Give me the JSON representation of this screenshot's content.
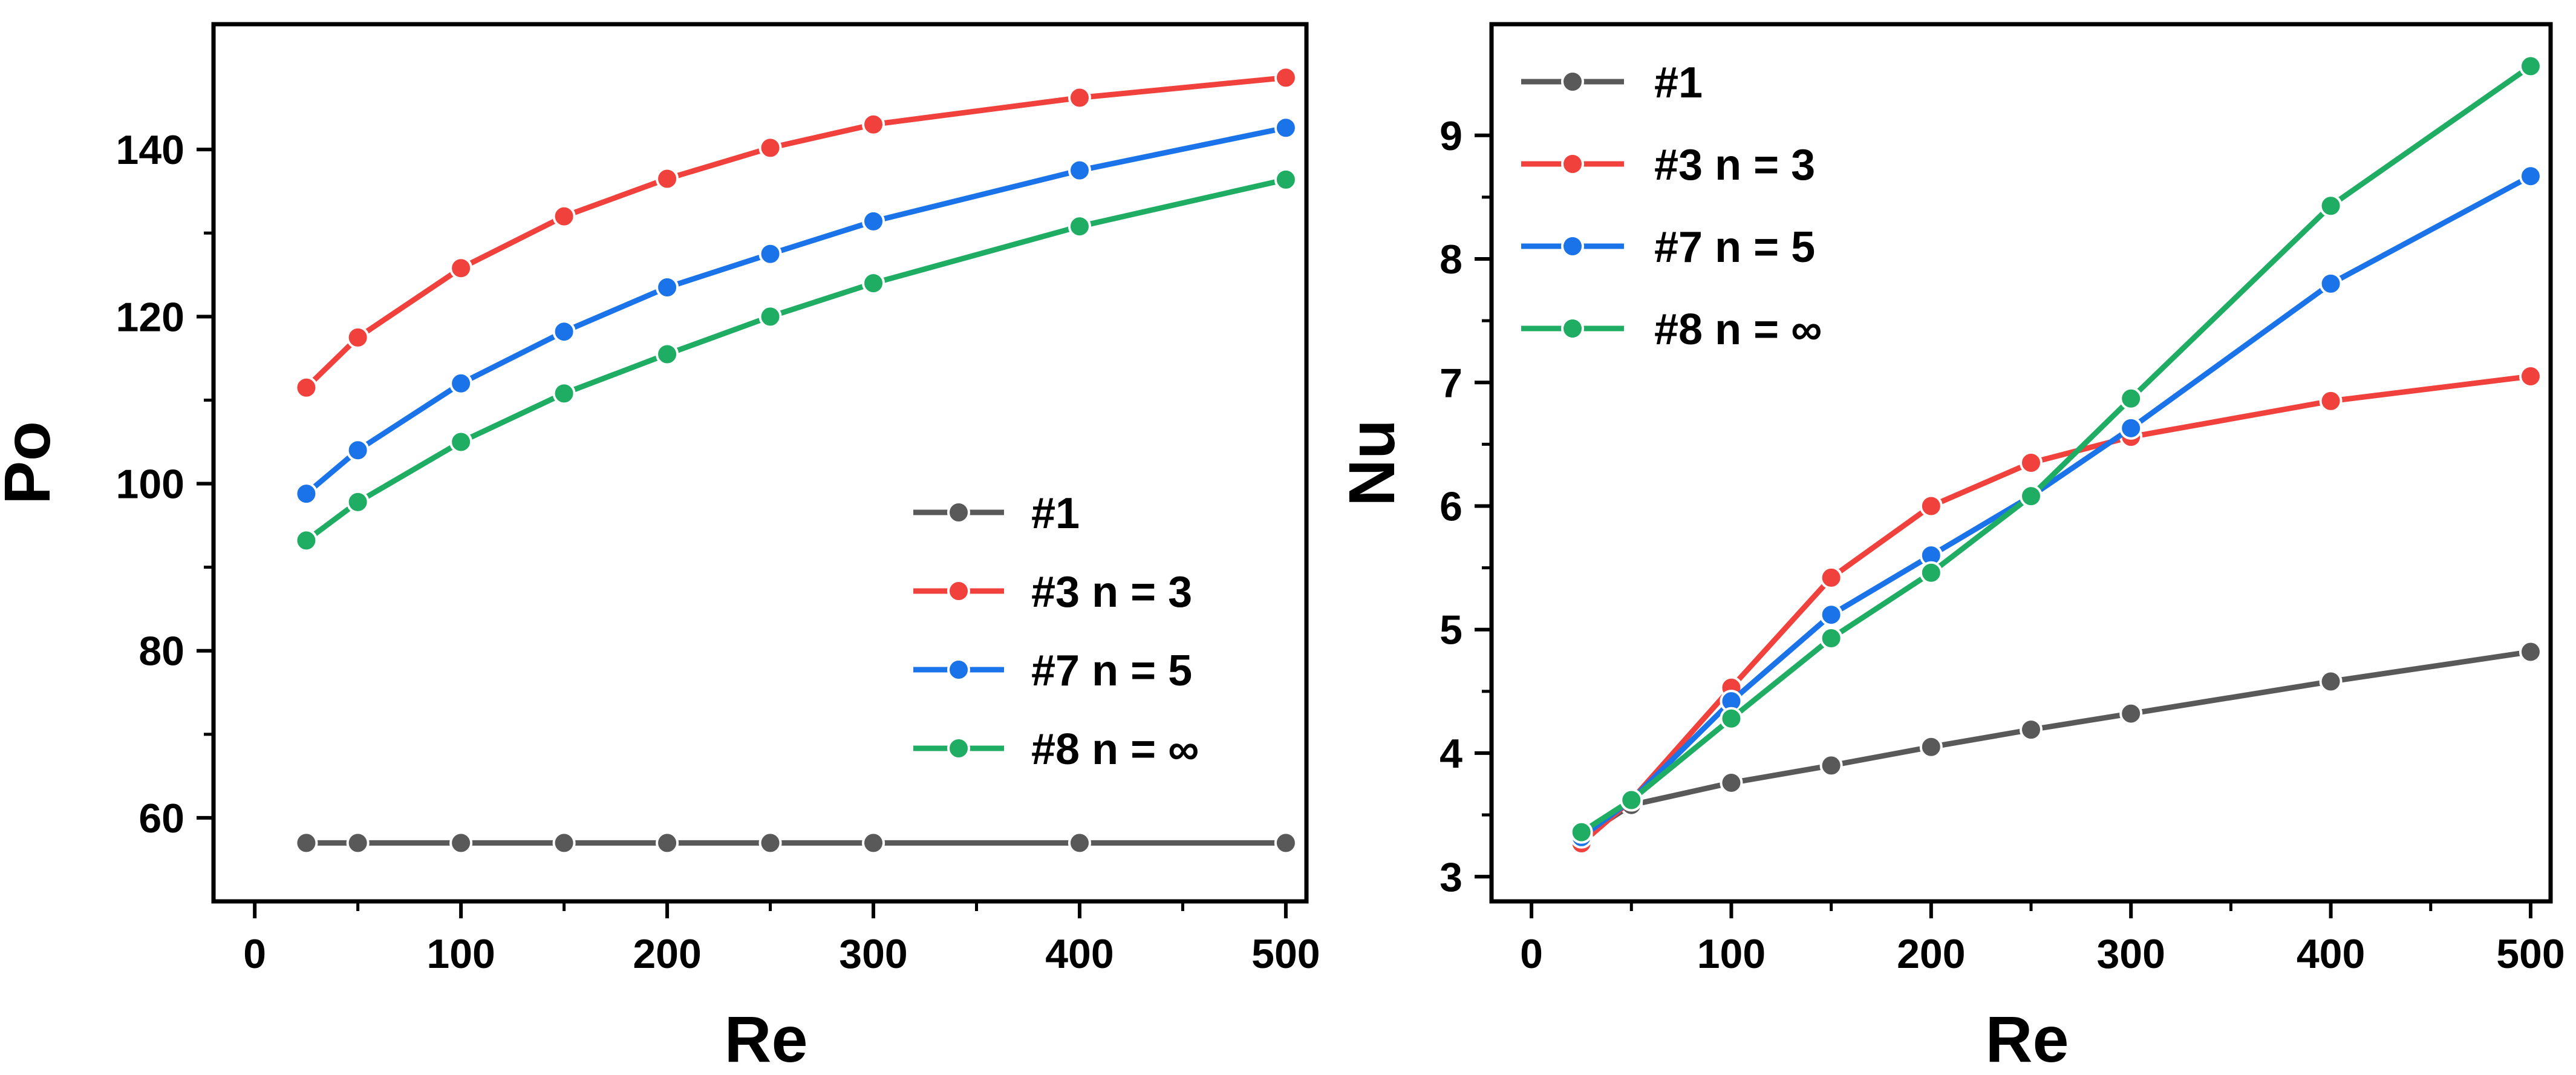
{
  "chart_data": [
    {
      "type": "line",
      "title": "",
      "xlabel": "Re",
      "ylabel": "Po",
      "xlim": [
        -20,
        510
      ],
      "ylim": [
        50,
        155
      ],
      "xticks": [
        0,
        100,
        200,
        300,
        400,
        500
      ],
      "yticks": [
        60,
        80,
        100,
        120,
        140
      ],
      "x": [
        25,
        50,
        100,
        150,
        200,
        250,
        300,
        400,
        500
      ],
      "legend_position": "lower-right",
      "series": [
        {
          "name": "#1",
          "color": "#595959",
          "values": [
            57,
            57,
            57,
            57,
            57,
            57,
            57,
            57,
            57
          ]
        },
        {
          "name": "#3 n = 3",
          "color": "#f0413c",
          "values": [
            111.5,
            117.5,
            125.8,
            132,
            136.5,
            140.2,
            143,
            146.2,
            148.6
          ]
        },
        {
          "name": "#7 n = 5",
          "color": "#1a73e8",
          "values": [
            98.8,
            104,
            112,
            118.2,
            123.5,
            127.5,
            131.4,
            137.5,
            142.6
          ]
        },
        {
          "name": "#8 n = ∞",
          "color": "#1fad63",
          "values": [
            93.2,
            97.8,
            105,
            110.8,
            115.5,
            120,
            124,
            130.8,
            136.4
          ]
        }
      ]
    },
    {
      "type": "line",
      "title": "",
      "xlabel": "Re",
      "ylabel": "Nu",
      "xlim": [
        -20,
        510
      ],
      "ylim": [
        2.8,
        9.9
      ],
      "xticks": [
        0,
        100,
        200,
        300,
        400,
        500
      ],
      "yticks": [
        3,
        4,
        5,
        6,
        7,
        8,
        9
      ],
      "x": [
        25,
        50,
        100,
        150,
        200,
        250,
        300,
        400,
        500
      ],
      "legend_position": "top-left",
      "series": [
        {
          "name": "#1",
          "color": "#595959",
          "values": [
            3.32,
            3.58,
            3.76,
            3.9,
            4.05,
            4.19,
            4.32,
            4.58,
            4.82
          ]
        },
        {
          "name": "#3 n = 3",
          "color": "#f0413c",
          "values": [
            3.27,
            3.62,
            4.53,
            5.42,
            6.0,
            6.35,
            6.56,
            6.85,
            7.05
          ]
        },
        {
          "name": "#7 n = 5",
          "color": "#1a73e8",
          "values": [
            3.32,
            3.62,
            4.42,
            5.12,
            5.6,
            6.08,
            6.63,
            7.8,
            8.67
          ]
        },
        {
          "name": "#8 n = ∞",
          "color": "#1fad63",
          "values": [
            3.36,
            3.62,
            4.28,
            4.93,
            5.46,
            6.08,
            6.87,
            8.43,
            9.56
          ]
        }
      ]
    }
  ]
}
